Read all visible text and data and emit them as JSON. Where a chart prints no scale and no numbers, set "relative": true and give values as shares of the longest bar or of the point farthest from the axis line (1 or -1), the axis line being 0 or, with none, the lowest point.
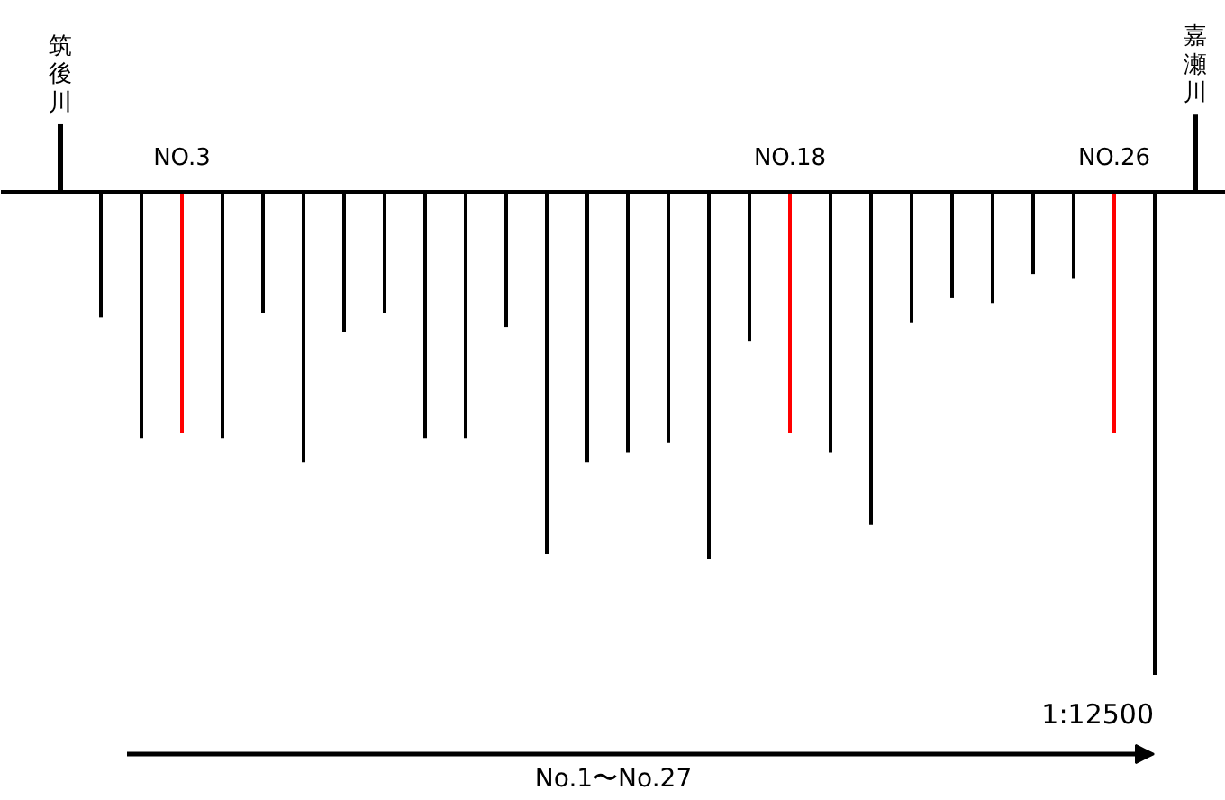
{
  "chart_data": {
    "type": "bar",
    "relative": true,
    "categories": [
      "筑後川",
      null,
      null,
      "NO.3",
      null,
      null,
      null,
      null,
      null,
      null,
      null,
      null,
      null,
      null,
      null,
      null,
      null,
      null,
      "NO.18",
      null,
      null,
      null,
      null,
      null,
      null,
      null,
      "NO.26",
      null,
      "嘉瀬川"
    ],
    "values": [
      0.14,
      -0.26,
      -0.51,
      -0.5,
      -0.51,
      -0.25,
      -0.56,
      -0.29,
      -0.25,
      -0.51,
      -0.51,
      -0.28,
      -0.75,
      -0.56,
      -0.54,
      -0.52,
      -0.76,
      -0.31,
      -0.5,
      -0.54,
      -0.69,
      -0.27,
      -0.22,
      -0.23,
      -0.17,
      -0.18,
      -0.5,
      -1.0,
      0.16
    ],
    "colors": [
      "#000000",
      "#000000",
      "#000000",
      "#ff0000",
      "#000000",
      "#000000",
      "#000000",
      "#000000",
      "#000000",
      "#000000",
      "#000000",
      "#000000",
      "#000000",
      "#000000",
      "#000000",
      "#000000",
      "#000000",
      "#000000",
      "#ff0000",
      "#000000",
      "#000000",
      "#000000",
      "#000000",
      "#000000",
      "#000000",
      "#000000",
      "#ff0000",
      "#000000",
      "#000000"
    ],
    "annotations": [
      "1:12500",
      "No.1〜No.27"
    ],
    "grid": false
  }
}
